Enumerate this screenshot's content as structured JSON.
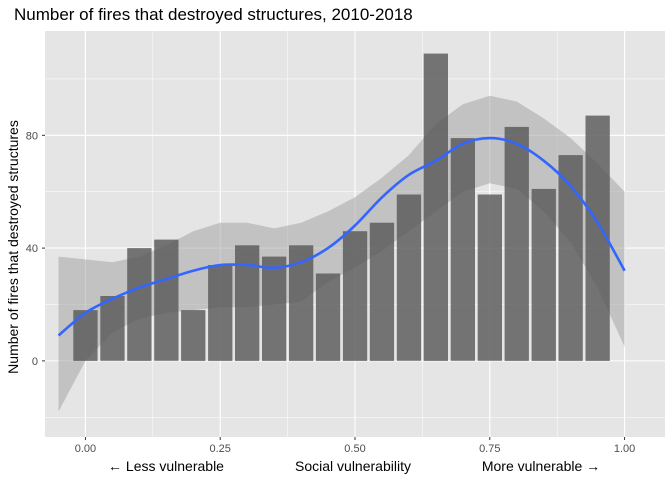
{
  "chart_data": {
    "type": "bar",
    "title": "Number of fires that destroyed structures, 2010-2018",
    "ylabel": "Number of fires that destroyed structures",
    "xlabel": "Social vulnerability",
    "x_annotations": {
      "left": "← Less vulnerable",
      "right": "More vulnerable →"
    },
    "xlim": [
      -0.075,
      1.075
    ],
    "ylim": [
      -27,
      117
    ],
    "x_ticks": [
      0.0,
      0.25,
      0.5,
      0.75,
      1.0
    ],
    "x_tick_labels": [
      "0.00",
      "0.25",
      "0.50",
      "0.75",
      "1.00"
    ],
    "y_ticks": [
      0,
      40,
      80
    ],
    "y_tick_labels": [
      "0",
      "40",
      "80"
    ],
    "grid": true,
    "bars": {
      "x": [
        0.0,
        0.05,
        0.1,
        0.15,
        0.2,
        0.25,
        0.3,
        0.35,
        0.4,
        0.45,
        0.5,
        0.55,
        0.6,
        0.65,
        0.7,
        0.75,
        0.8,
        0.85,
        0.9,
        0.95
      ],
      "values": [
        18,
        23,
        40,
        43,
        18,
        34,
        41,
        37,
        41,
        31,
        46,
        49,
        59,
        109,
        79,
        59,
        83,
        61,
        73,
        87
      ]
    },
    "smooth": {
      "x": [
        -0.05,
        0.0,
        0.05,
        0.1,
        0.15,
        0.2,
        0.25,
        0.3,
        0.35,
        0.4,
        0.45,
        0.5,
        0.55,
        0.6,
        0.65,
        0.7,
        0.75,
        0.8,
        0.85,
        0.9,
        0.95,
        1.0
      ],
      "y": [
        9,
        17,
        22,
        26,
        29,
        32,
        34,
        34,
        33,
        35,
        40,
        48,
        58,
        66,
        71,
        77,
        79,
        77,
        71,
        62,
        49,
        32
      ],
      "lower": [
        -18,
        0,
        10,
        15,
        17,
        18,
        19,
        19,
        20,
        21,
        28,
        33,
        39,
        46,
        53,
        60,
        63,
        61,
        53,
        42,
        26,
        5
      ],
      "upper": [
        37,
        36,
        35,
        37,
        41,
        46,
        49,
        49,
        47,
        49,
        53,
        58,
        65,
        73,
        84,
        91,
        94,
        92,
        86,
        79,
        70,
        60
      ]
    },
    "colors": {
      "panel": "#e5e5e5",
      "grid_major": "#ffffff",
      "bar": "#595959",
      "ribbon": "#a6a6a6",
      "line": "#3366ff"
    }
  }
}
